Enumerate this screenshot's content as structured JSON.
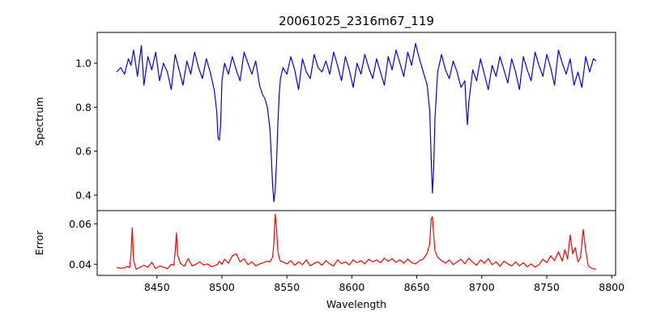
{
  "chart_data": {
    "type": "line",
    "title": "20061025_2316m67_119",
    "xlabel": "Wavelength",
    "colors": {
      "spectrum": "#0000ff",
      "error": "#ff0000",
      "axes": "#000000",
      "background": "#ffffff"
    },
    "grid": false,
    "panels": [
      {
        "name": "spectrum-panel",
        "ylabel": "Spectrum",
        "xlim": [
          8404,
          8803
        ],
        "ylim": [
          0.33,
          1.14
        ],
        "yticks": [
          0.4,
          0.6,
          0.8,
          1.0
        ],
        "ytick_labels": [
          "0.4",
          "0.6",
          "0.8",
          "1.0"
        ],
        "series": [
          {
            "x": [
              8419,
              8422,
              8425,
              8428,
              8430,
              8432,
              8435,
              8438,
              8440,
              8443,
              8446,
              8449,
              8452,
              8455,
              8458,
              8461,
              8464,
              8467,
              8470,
              8473,
              8476,
              8479,
              8482,
              8485,
              8488,
              8491,
              8494,
              8496,
              8497,
              8498,
              8499,
              8500,
              8502,
              8505,
              8508,
              8511,
              8514,
              8517,
              8520,
              8523,
              8526,
              8529,
              8531,
              8533,
              8535,
              8537,
              8538,
              8539,
              8540,
              8541,
              8542,
              8543,
              8544,
              8545,
              8547,
              8550,
              8553,
              8556,
              8559,
              8562,
              8565,
              8568,
              8571,
              8574,
              8577,
              8580,
              8583,
              8586,
              8589,
              8592,
              8595,
              8598,
              8601,
              8604,
              8607,
              8610,
              8613,
              8616,
              8619,
              8622,
              8625,
              8628,
              8631,
              8634,
              8637,
              8640,
              8643,
              8646,
              8649,
              8652,
              8655,
              8658,
              8660,
              8661,
              8662,
              8663,
              8664,
              8666,
              8669,
              8672,
              8675,
              8678,
              8681,
              8684,
              8687,
              8688,
              8689,
              8690,
              8693,
              8696,
              8699,
              8702,
              8705,
              8708,
              8711,
              8714,
              8717,
              8720,
              8723,
              8726,
              8729,
              8732,
              8735,
              8738,
              8741,
              8744,
              8747,
              8750,
              8753,
              8756,
              8759,
              8762,
              8765,
              8768,
              8771,
              8774,
              8777,
              8780,
              8783,
              8786,
              8788
            ],
            "y": [
              0.96,
              0.98,
              0.95,
              1.02,
              0.99,
              1.06,
              0.94,
              1.08,
              0.9,
              1.03,
              0.97,
              1.05,
              0.92,
              1.0,
              0.96,
              0.88,
              1.04,
              0.97,
              0.9,
              1.01,
              0.95,
              1.05,
              0.98,
              0.93,
              1.02,
              0.96,
              0.88,
              0.78,
              0.66,
              0.65,
              0.72,
              0.92,
              1.0,
              0.95,
              1.03,
              0.97,
              0.92,
              1.05,
              1.0,
              0.95,
              1.01,
              0.9,
              0.86,
              0.84,
              0.8,
              0.7,
              0.58,
              0.45,
              0.37,
              0.42,
              0.55,
              0.72,
              0.85,
              0.93,
              0.98,
              0.95,
              1.03,
              0.97,
              0.88,
              1.02,
              0.96,
              0.93,
              1.04,
              0.98,
              0.96,
              1.01,
              0.95,
              1.05,
              0.99,
              0.92,
              1.03,
              0.97,
              0.89,
              1.0,
              0.95,
              1.04,
              0.98,
              0.93,
              1.02,
              0.96,
              0.9,
              1.03,
              0.97,
              1.06,
              1.0,
              0.94,
              1.05,
              0.99,
              1.09,
              1.02,
              0.96,
              0.9,
              0.78,
              0.58,
              0.41,
              0.52,
              0.75,
              0.96,
              1.04,
              0.97,
              0.93,
              1.01,
              0.96,
              0.89,
              0.92,
              0.8,
              0.72,
              0.82,
              0.97,
              0.92,
              1.02,
              0.95,
              0.88,
              0.99,
              0.94,
              1.03,
              0.97,
              0.91,
              1.02,
              0.96,
              0.88,
              1.03,
              0.97,
              0.92,
              1.05,
              0.99,
              0.94,
              1.04,
              0.98,
              0.9,
              1.06,
              1.0,
              0.95,
              1.02,
              0.9,
              0.96,
              0.89,
              1.03,
              0.96,
              1.02,
              1.01
            ]
          }
        ]
      },
      {
        "name": "error-panel",
        "ylabel": "Error",
        "xlim": [
          8404,
          8803
        ],
        "ylim": [
          0.0345,
          0.0665
        ],
        "yticks": [
          0.04,
          0.06
        ],
        "ytick_labels": [
          "0.04",
          "0.06"
        ],
        "xticks": [
          8450,
          8500,
          8550,
          8600,
          8650,
          8700,
          8750,
          8800
        ],
        "xtick_labels": [
          "8450",
          "8500",
          "8550",
          "8600",
          "8650",
          "8700",
          "8750",
          "8800"
        ],
        "series": [
          {
            "x": [
              8419,
              8422,
              8425,
              8427,
              8429,
              8430,
              8431,
              8432,
              8434,
              8437,
              8440,
              8443,
              8446,
              8449,
              8452,
              8455,
              8458,
              8461,
              8463,
              8464,
              8465,
              8466,
              8468,
              8471,
              8474,
              8477,
              8480,
              8483,
              8486,
              8489,
              8492,
              8495,
              8497,
              8498,
              8500,
              8502,
              8505,
              8508,
              8511,
              8514,
              8517,
              8520,
              8523,
              8526,
              8529,
              8532,
              8535,
              8537,
              8539,
              8540,
              8541,
              8542,
              8543,
              8544,
              8545,
              8547,
              8550,
              8553,
              8556,
              8559,
              8562,
              8565,
              8568,
              8571,
              8574,
              8577,
              8580,
              8583,
              8586,
              8589,
              8592,
              8595,
              8598,
              8601,
              8604,
              8607,
              8610,
              8613,
              8616,
              8619,
              8622,
              8625,
              8628,
              8631,
              8634,
              8637,
              8640,
              8643,
              8646,
              8649,
              8652,
              8655,
              8658,
              8660,
              8661,
              8662,
              8663,
              8664,
              8666,
              8669,
              8672,
              8675,
              8678,
              8681,
              8684,
              8687,
              8690,
              8693,
              8696,
              8699,
              8702,
              8705,
              8708,
              8711,
              8714,
              8717,
              8720,
              8723,
              8726,
              8729,
              8732,
              8735,
              8738,
              8741,
              8744,
              8747,
              8750,
              8753,
              8756,
              8759,
              8762,
              8764,
              8766,
              8768,
              8770,
              8772,
              8774,
              8776,
              8778,
              8780,
              8782,
              8784,
              8786,
              8788
            ],
            "y": [
              0.0385,
              0.038,
              0.0382,
              0.039,
              0.0384,
              0.045,
              0.058,
              0.042,
              0.0376,
              0.0385,
              0.0395,
              0.0385,
              0.041,
              0.0378,
              0.0392,
              0.0386,
              0.0378,
              0.04,
              0.0395,
              0.046,
              0.0555,
              0.0445,
              0.0405,
              0.039,
              0.0428,
              0.0392,
              0.04,
              0.0412,
              0.0396,
              0.0402,
              0.0388,
              0.0395,
              0.0402,
              0.0415,
              0.04,
              0.0425,
              0.0405,
              0.0442,
              0.0452,
              0.0412,
              0.0428,
              0.0398,
              0.0412,
              0.0392,
              0.0402,
              0.0408,
              0.0415,
              0.0412,
              0.0435,
              0.0502,
              0.0648,
              0.058,
              0.0468,
              0.0432,
              0.0416,
              0.0412,
              0.0402,
              0.0418,
              0.0395,
              0.0412,
              0.0398,
              0.0422,
              0.0392,
              0.0405,
              0.0412,
              0.0395,
              0.0418,
              0.0402,
              0.0392,
              0.0422,
              0.0403,
              0.0412,
              0.0397,
              0.0422,
              0.0408,
              0.0418,
              0.0402,
              0.0425,
              0.0412,
              0.0422,
              0.0408,
              0.043,
              0.0415,
              0.0427,
              0.041,
              0.0422,
              0.0405,
              0.0426,
              0.0408,
              0.0402,
              0.0418,
              0.0426,
              0.0455,
              0.0502,
              0.0622,
              0.0635,
              0.0545,
              0.0468,
              0.0435,
              0.0418,
              0.0405,
              0.0422,
              0.0398,
              0.0412,
              0.0425,
              0.0402,
              0.043,
              0.041,
              0.0395,
              0.0422,
              0.0405,
              0.0428,
              0.0398,
              0.0412,
              0.039,
              0.0415,
              0.0402,
              0.0392,
              0.0412,
              0.0392,
              0.0408,
              0.0388,
              0.0402,
              0.0386,
              0.0398,
              0.0425,
              0.0408,
              0.0442,
              0.0418,
              0.0462,
              0.0415,
              0.0472,
              0.0425,
              0.0545,
              0.0452,
              0.0482,
              0.0412,
              0.0432,
              0.0572,
              0.047,
              0.0392,
              0.0382,
              0.0378,
              0.0375
            ]
          }
        ]
      }
    ]
  }
}
